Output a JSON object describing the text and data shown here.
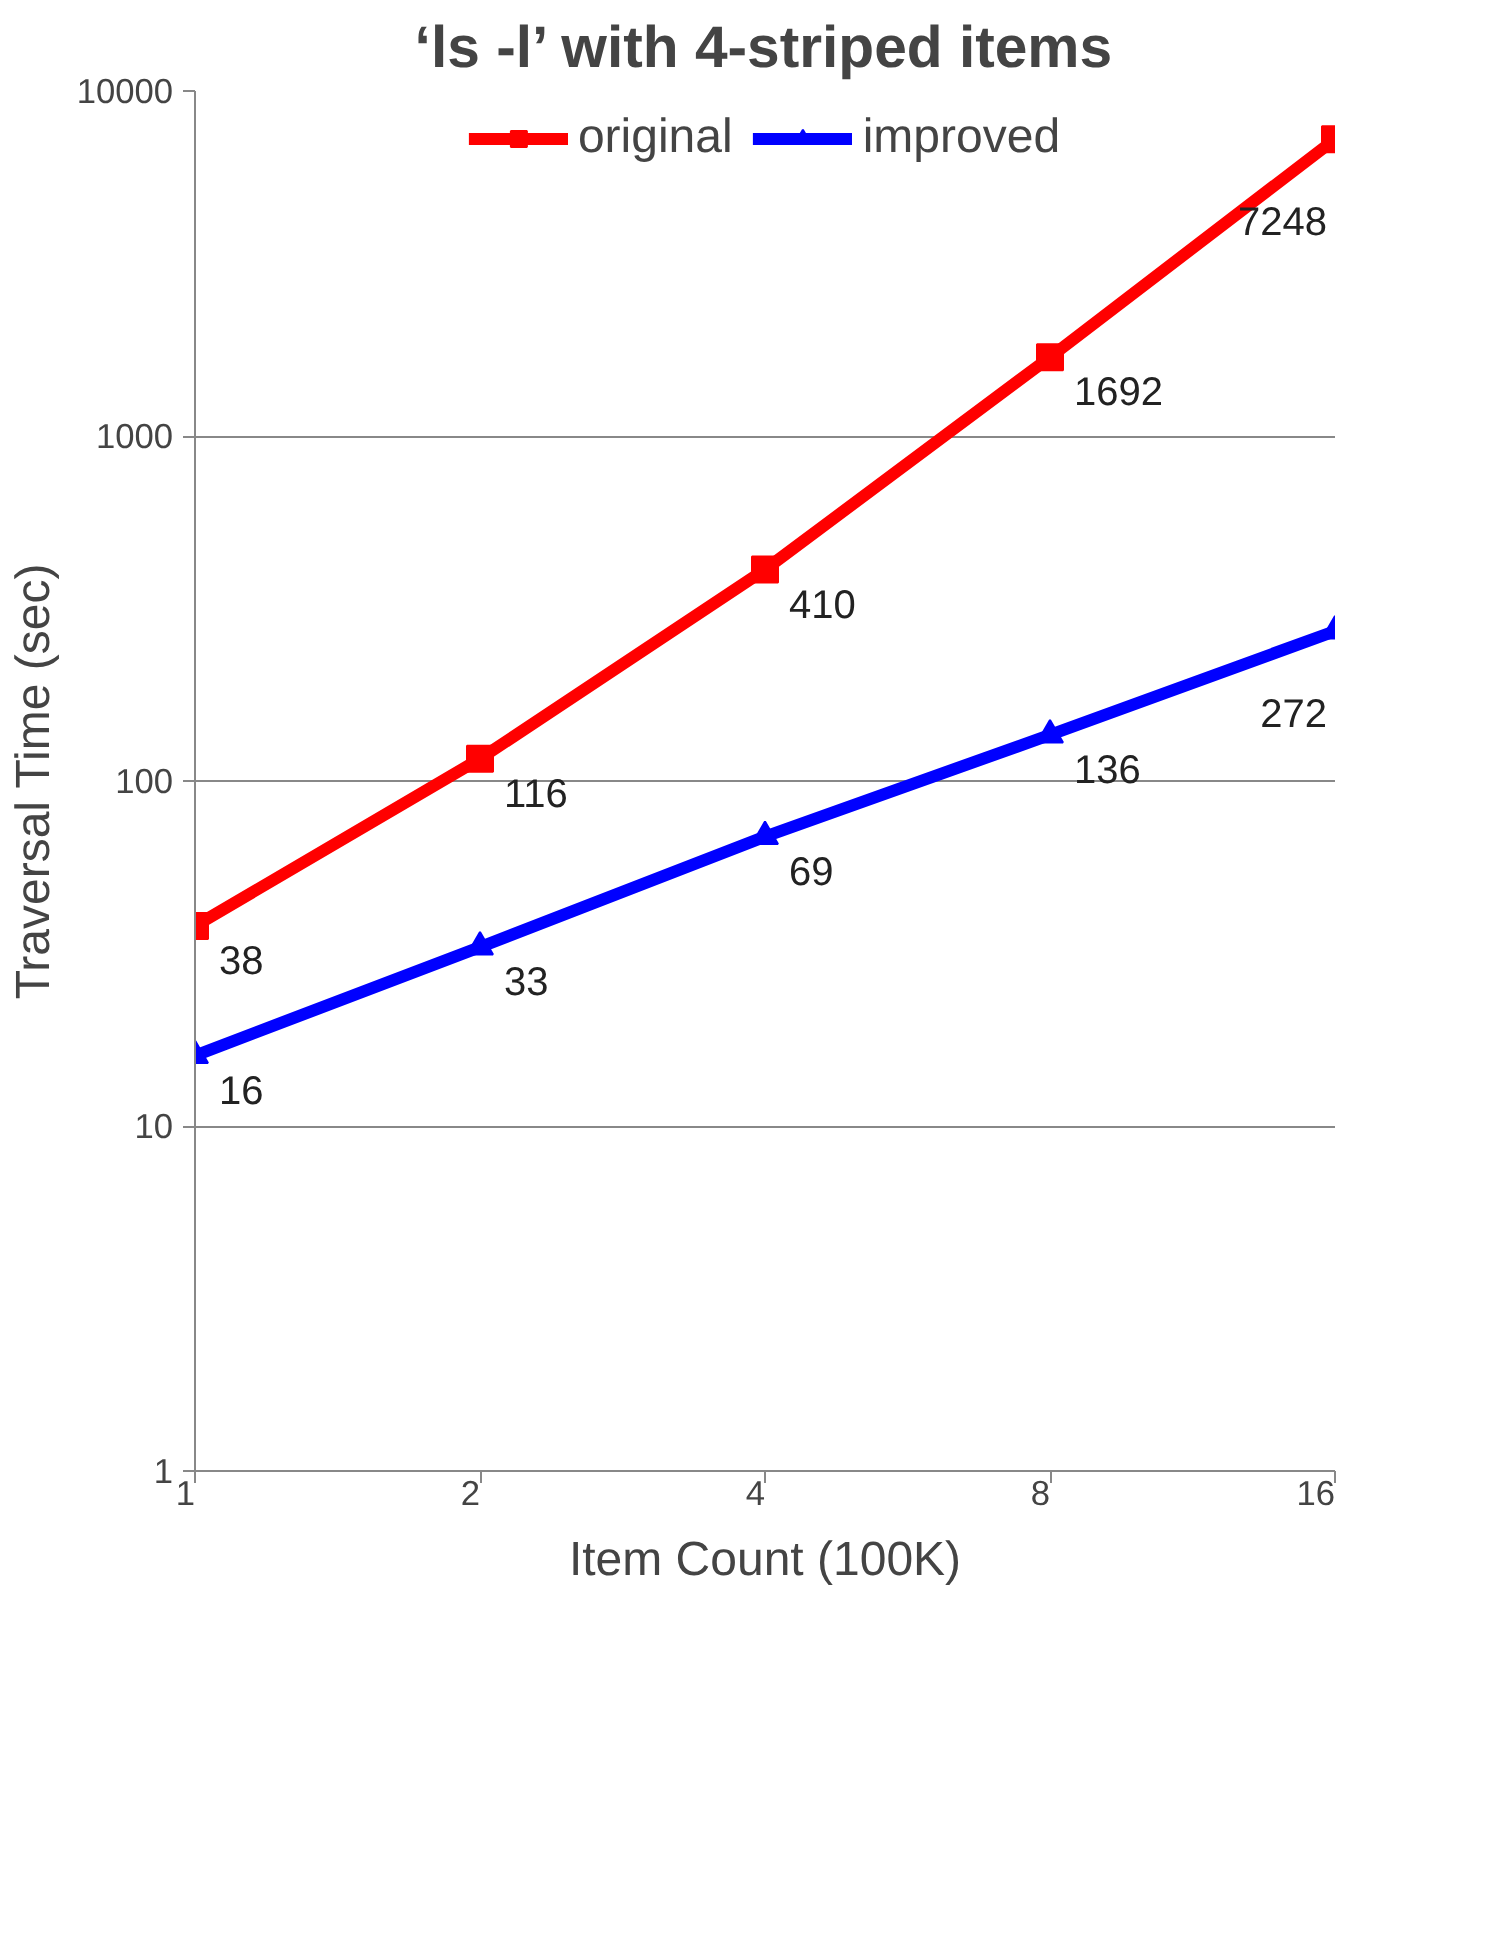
{
  "chart_data": {
    "type": "line",
    "title": "‘ls -l’ with 4-striped items",
    "xlabel": "Item Count (100K)",
    "ylabel": "Traversal Time (sec)",
    "categories": [
      "1",
      "2",
      "4",
      "8",
      "16"
    ],
    "log": true,
    "ylim": [
      1,
      10000
    ],
    "yticks": [
      1,
      10,
      100,
      1000,
      10000
    ],
    "grid": "y",
    "legend": "top",
    "data_labels": true,
    "series": [
      {
        "name": "original",
        "color": "#ff0000",
        "marker": "square",
        "values": [
          38,
          116,
          410,
          1692,
          7248
        ]
      },
      {
        "name": "improved",
        "color": "#0000ff",
        "marker": "triangle",
        "values": [
          16,
          33,
          69,
          136,
          272
        ]
      }
    ]
  }
}
